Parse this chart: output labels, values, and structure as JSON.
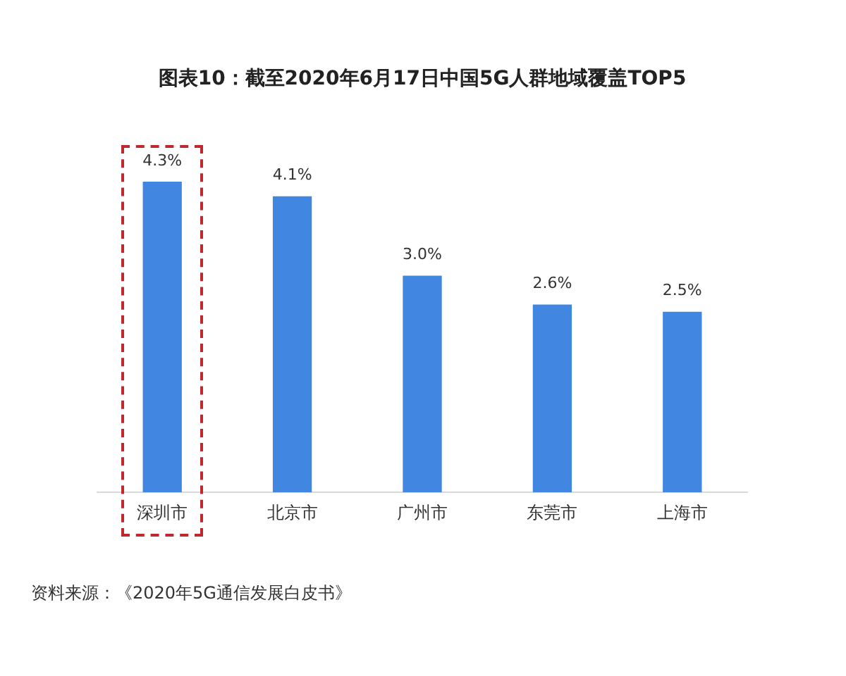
{
  "chart_data": {
    "type": "bar",
    "title": "图表10：截至2020年6月17日中国5G人群地域覆盖TOP5",
    "categories": [
      "深圳市",
      "北京市",
      "广州市",
      "东莞市",
      "上海市"
    ],
    "values": [
      4.3,
      4.1,
      3.0,
      2.6,
      2.5
    ],
    "value_labels": [
      "4.3%",
      "4.1%",
      "3.0%",
      "2.6%",
      "2.5%"
    ],
    "color": "#4186e0",
    "tick_labels": "x",
    "annotations": [
      "资料来源：《2020年5G通信发展白皮书》"
    ]
  }
}
